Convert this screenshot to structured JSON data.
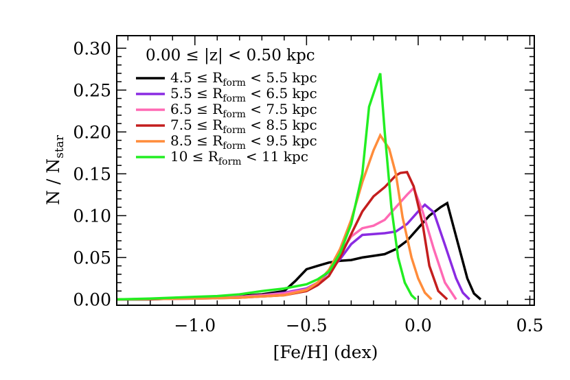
{
  "chart_data": {
    "type": "line",
    "title": "0.00 ≤ |z| < 0.50 kpc",
    "xlabel": "[Fe/H]  (dex)",
    "ylabel_main": "N / N",
    "ylabel_sub": "star",
    "xlim": [
      -1.35,
      0.52
    ],
    "ylim": [
      -0.007,
      0.315
    ],
    "xticks": [
      -1.0,
      -0.5,
      0.0,
      0.5
    ],
    "xtick_labels": [
      "−1.0",
      "−0.5",
      "0.0",
      "0.5"
    ],
    "yticks": [
      0.0,
      0.05,
      0.1,
      0.15,
      0.2,
      0.25,
      0.3
    ],
    "ytick_labels": [
      "0.00",
      "0.05",
      "0.10",
      "0.15",
      "0.20",
      "0.25",
      "0.30"
    ],
    "legend_position": "top-left",
    "grid": false,
    "series": [
      {
        "label_pre": "4.5 ≤ R",
        "label_sub": "form",
        "label_post": " < 5.5 kpc",
        "color": "#000000",
        "x": [
          -1.35,
          -1.2,
          -1.0,
          -0.8,
          -0.7,
          -0.6,
          -0.55,
          -0.5,
          -0.45,
          -0.4,
          -0.35,
          -0.3,
          -0.25,
          -0.2,
          -0.15,
          -0.1,
          -0.05,
          0.0,
          0.05,
          0.1,
          0.13,
          0.17,
          0.22,
          0.25,
          0.28
        ],
        "y": [
          0.0,
          0.0,
          0.002,
          0.004,
          0.006,
          0.01,
          0.022,
          0.036,
          0.04,
          0.044,
          0.046,
          0.047,
          0.05,
          0.052,
          0.054,
          0.06,
          0.07,
          0.085,
          0.1,
          0.11,
          0.115,
          0.075,
          0.025,
          0.007,
          0.0
        ]
      },
      {
        "label_pre": "5.5 ≤ R",
        "label_sub": "form",
        "label_post": " < 6.5 kpc",
        "color": "#8A2BE2",
        "x": [
          -1.35,
          -1.0,
          -0.8,
          -0.7,
          -0.6,
          -0.5,
          -0.45,
          -0.4,
          -0.35,
          -0.3,
          -0.25,
          -0.2,
          -0.15,
          -0.1,
          -0.05,
          0.0,
          0.03,
          0.07,
          0.12,
          0.17,
          0.2,
          0.23
        ],
        "y": [
          0.0,
          0.001,
          0.003,
          0.005,
          0.008,
          0.013,
          0.02,
          0.033,
          0.048,
          0.066,
          0.077,
          0.078,
          0.079,
          0.081,
          0.09,
          0.105,
          0.113,
          0.104,
          0.065,
          0.025,
          0.008,
          0.0
        ]
      },
      {
        "label_pre": "6.5 ≤ R",
        "label_sub": "form",
        "label_post": " < 7.5 kpc",
        "color": "#FF69B4",
        "x": [
          -1.35,
          -1.0,
          -0.8,
          -0.6,
          -0.5,
          -0.45,
          -0.4,
          -0.35,
          -0.3,
          -0.25,
          -0.2,
          -0.15,
          -0.1,
          -0.05,
          -0.02,
          0.02,
          0.07,
          0.12,
          0.17
        ],
        "y": [
          0.0,
          0.001,
          0.003,
          0.007,
          0.012,
          0.02,
          0.035,
          0.055,
          0.075,
          0.085,
          0.088,
          0.095,
          0.11,
          0.125,
          0.133,
          0.105,
          0.06,
          0.02,
          0.0
        ]
      },
      {
        "label_pre": "7.5 ≤ R",
        "label_sub": "form",
        "label_post": " < 8.5 kpc",
        "color": "#C41E1E",
        "x": [
          -1.35,
          -1.0,
          -0.8,
          -0.6,
          -0.5,
          -0.45,
          -0.4,
          -0.35,
          -0.3,
          -0.25,
          -0.2,
          -0.15,
          -0.1,
          -0.08,
          -0.05,
          -0.02,
          0.02,
          0.05,
          0.09,
          0.13
        ],
        "y": [
          0.0,
          0.001,
          0.002,
          0.005,
          0.01,
          0.017,
          0.028,
          0.05,
          0.078,
          0.105,
          0.123,
          0.134,
          0.148,
          0.151,
          0.152,
          0.135,
          0.09,
          0.04,
          0.01,
          0.0
        ]
      },
      {
        "label_pre": "8.5 ≤ R",
        "label_sub": "form",
        "label_post": " < 9.5 kpc",
        "color": "#FF8C3A",
        "x": [
          -1.35,
          -1.0,
          -0.8,
          -0.6,
          -0.5,
          -0.45,
          -0.4,
          -0.35,
          -0.3,
          -0.25,
          -0.2,
          -0.17,
          -0.13,
          -0.1,
          -0.07,
          -0.03,
          0.0,
          0.03,
          0.06
        ],
        "y": [
          0.0,
          0.001,
          0.002,
          0.005,
          0.011,
          0.02,
          0.035,
          0.06,
          0.095,
          0.14,
          0.178,
          0.196,
          0.18,
          0.15,
          0.098,
          0.05,
          0.025,
          0.008,
          0.0
        ]
      },
      {
        "label_pre": "10 ≤ R",
        "label_sub": "form",
        "label_post": " <  11 kpc",
        "color": "#22EE22",
        "x": [
          -1.35,
          -1.2,
          -1.1,
          -1.0,
          -0.9,
          -0.8,
          -0.7,
          -0.6,
          -0.5,
          -0.45,
          -0.4,
          -0.35,
          -0.3,
          -0.25,
          -0.22,
          -0.17,
          -0.15,
          -0.12,
          -0.09,
          -0.06,
          -0.03,
          -0.01
        ],
        "y": [
          0.0,
          0.001,
          0.002,
          0.003,
          0.004,
          0.006,
          0.01,
          0.013,
          0.018,
          0.024,
          0.033,
          0.055,
          0.09,
          0.15,
          0.23,
          0.27,
          0.2,
          0.11,
          0.05,
          0.02,
          0.005,
          0.0
        ]
      }
    ]
  }
}
